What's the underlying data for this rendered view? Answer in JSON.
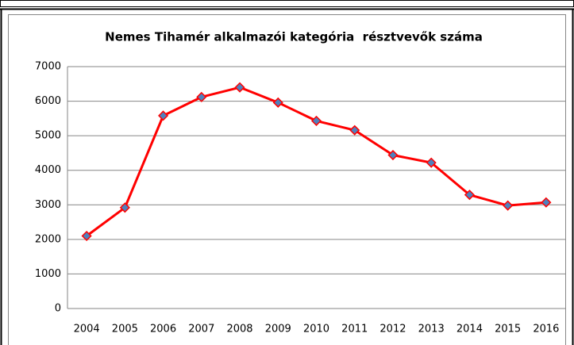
{
  "chart_data": {
    "type": "line",
    "title": "Nemes Tihamér alkalmazói kategória  résztvevők száma",
    "categories": [
      "2004",
      "2005",
      "2006",
      "2007",
      "2008",
      "2009",
      "2010",
      "2011",
      "2012",
      "2013",
      "2014",
      "2015",
      "2016"
    ],
    "values": [
      2100,
      2920,
      5580,
      6120,
      6400,
      5960,
      5430,
      5160,
      4440,
      4220,
      3290,
      2980,
      3070
    ],
    "color": "#ff0000",
    "marker_color": "#4f81bd",
    "ylim": [
      0,
      7000
    ],
    "yticks": [
      0,
      1000,
      2000,
      3000,
      4000,
      5000,
      6000,
      7000
    ],
    "grid": true
  }
}
